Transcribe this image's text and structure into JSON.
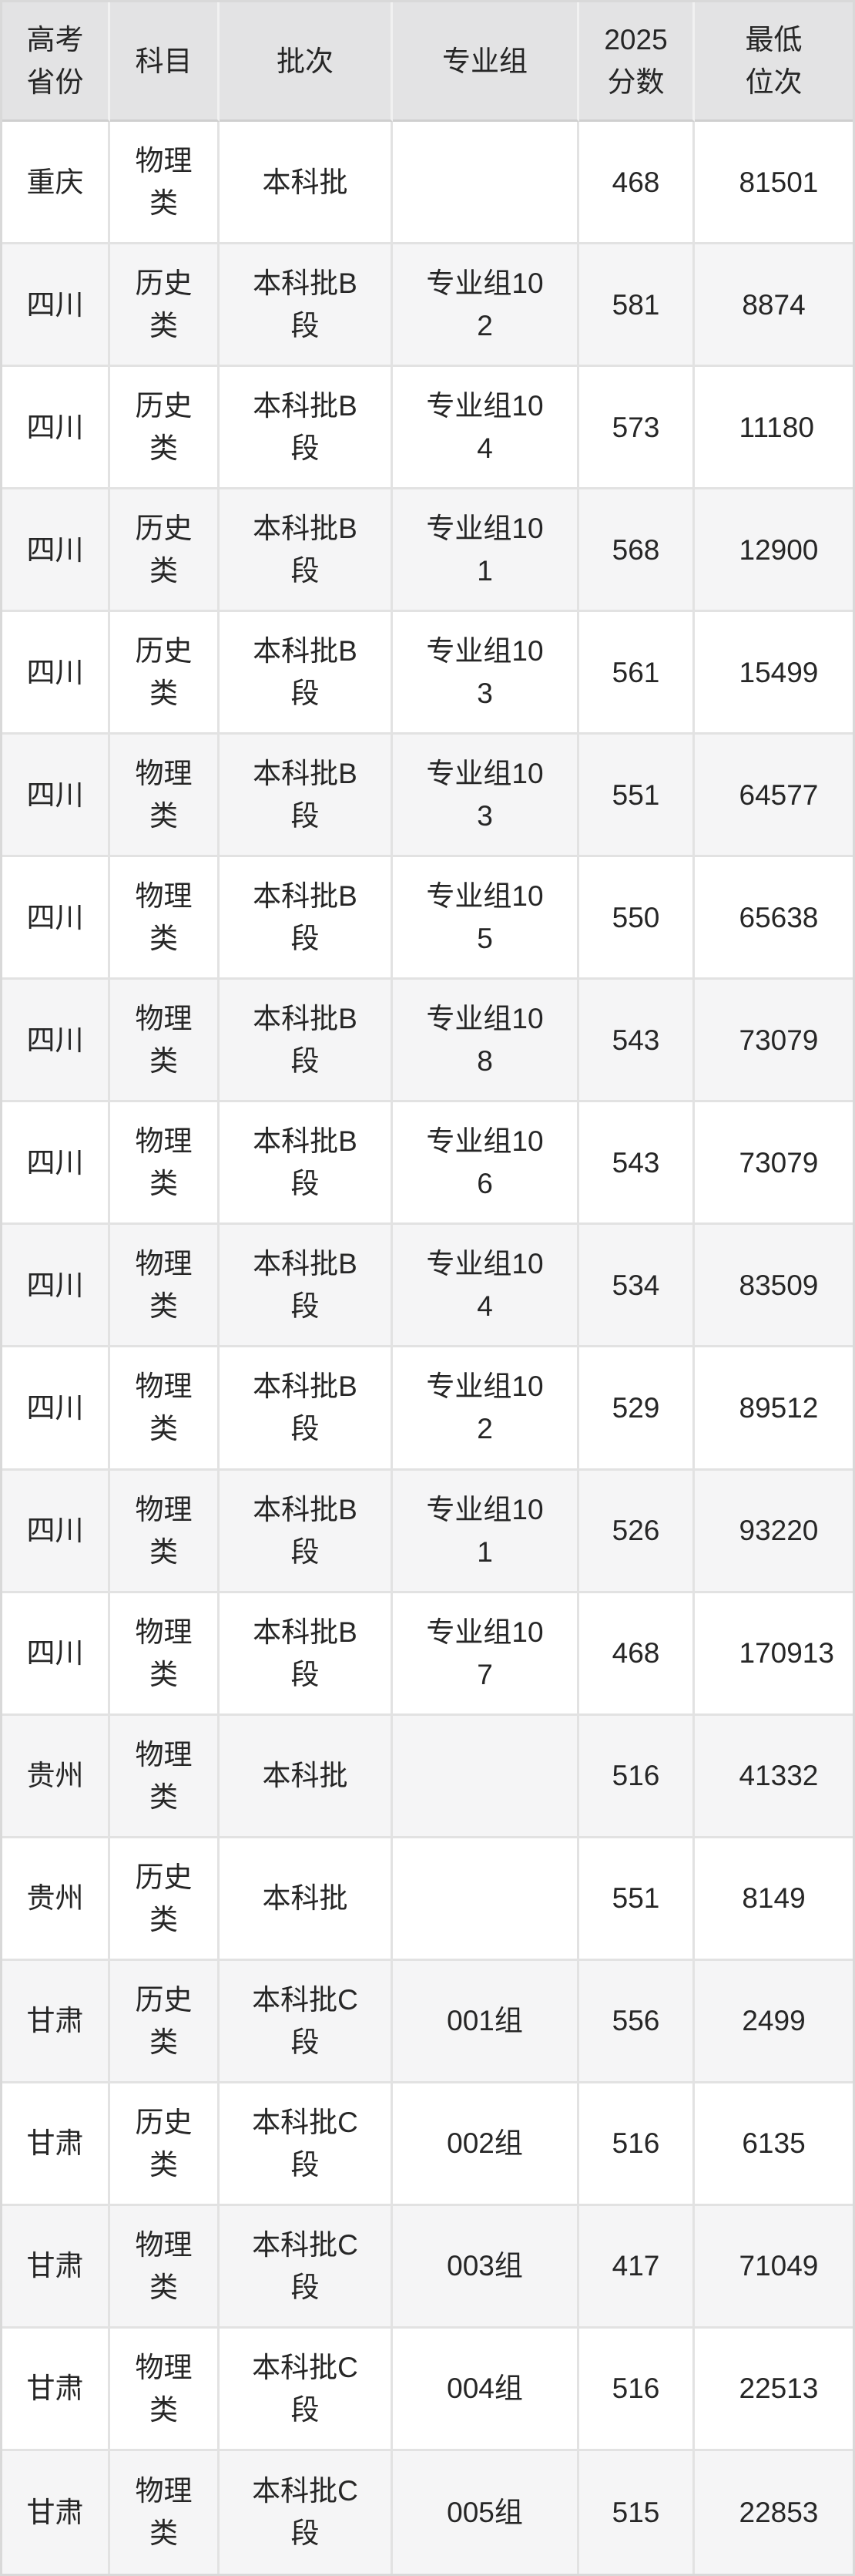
{
  "table": {
    "columns": [
      {
        "key": "province",
        "label": "高考省份"
      },
      {
        "key": "subject",
        "label": "科目"
      },
      {
        "key": "batch",
        "label": "批次"
      },
      {
        "key": "group",
        "label": "专业组"
      },
      {
        "key": "score",
        "label": "2025分数"
      },
      {
        "key": "rank",
        "label": "最低位次"
      }
    ],
    "rows": [
      {
        "province": "重庆",
        "subject": "物理类",
        "batch": "本科批",
        "group": "",
        "score": "468",
        "rank": "81501"
      },
      {
        "province": "四川",
        "subject": "历史类",
        "batch": "本科批B段",
        "group": "专业组102",
        "score": "581",
        "rank": "8874"
      },
      {
        "province": "四川",
        "subject": "历史类",
        "batch": "本科批B段",
        "group": "专业组104",
        "score": "573",
        "rank": "11180"
      },
      {
        "province": "四川",
        "subject": "历史类",
        "batch": "本科批B段",
        "group": "专业组101",
        "score": "568",
        "rank": "12900"
      },
      {
        "province": "四川",
        "subject": "历史类",
        "batch": "本科批B段",
        "group": "专业组103",
        "score": "561",
        "rank": "15499"
      },
      {
        "province": "四川",
        "subject": "物理类",
        "batch": "本科批B段",
        "group": "专业组103",
        "score": "551",
        "rank": "64577"
      },
      {
        "province": "四川",
        "subject": "物理类",
        "batch": "本科批B段",
        "group": "专业组105",
        "score": "550",
        "rank": "65638"
      },
      {
        "province": "四川",
        "subject": "物理类",
        "batch": "本科批B段",
        "group": "专业组108",
        "score": "543",
        "rank": "73079"
      },
      {
        "province": "四川",
        "subject": "物理类",
        "batch": "本科批B段",
        "group": "专业组106",
        "score": "543",
        "rank": "73079"
      },
      {
        "province": "四川",
        "subject": "物理类",
        "batch": "本科批B段",
        "group": "专业组104",
        "score": "534",
        "rank": "83509"
      },
      {
        "province": "四川",
        "subject": "物理类",
        "batch": "本科批B段",
        "group": "专业组102",
        "score": "529",
        "rank": "89512"
      },
      {
        "province": "四川",
        "subject": "物理类",
        "batch": "本科批B段",
        "group": "专业组101",
        "score": "526",
        "rank": "93220"
      },
      {
        "province": "四川",
        "subject": "物理类",
        "batch": "本科批B段",
        "group": "专业组107",
        "score": "468",
        "rank": "170913"
      },
      {
        "province": "贵州",
        "subject": "物理类",
        "batch": "本科批",
        "group": "",
        "score": "516",
        "rank": "41332"
      },
      {
        "province": "贵州",
        "subject": "历史类",
        "batch": "本科批",
        "group": "",
        "score": "551",
        "rank": "8149"
      },
      {
        "province": "甘肃",
        "subject": "历史类",
        "batch": "本科批C段",
        "group": "001组",
        "score": "556",
        "rank": "2499"
      },
      {
        "province": "甘肃",
        "subject": "历史类",
        "batch": "本科批C段",
        "group": "002组",
        "score": "516",
        "rank": "6135"
      },
      {
        "province": "甘肃",
        "subject": "物理类",
        "batch": "本科批C段",
        "group": "003组",
        "score": "417",
        "rank": "71049"
      },
      {
        "province": "甘肃",
        "subject": "物理类",
        "batch": "本科批C段",
        "group": "004组",
        "score": "516",
        "rank": "22513"
      },
      {
        "province": "甘肃",
        "subject": "物理类",
        "batch": "本科批C段",
        "group": "005组",
        "score": "515",
        "rank": "22853"
      }
    ]
  },
  "colors": {
    "header_bg": "#e3e3e4",
    "row_alt_bg": "#f5f5f6",
    "grid_line": "#e2e2e2",
    "header_bottom_line": "#cfcfcf",
    "text": "#262626"
  }
}
